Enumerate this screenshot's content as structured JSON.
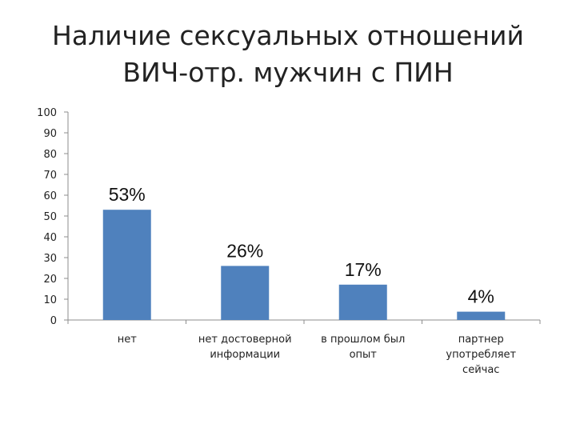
{
  "chart_data": {
    "type": "bar",
    "title_line1": "Наличие сексуальных отношений",
    "title_line2": "ВИЧ-отр. мужчин с ПИН",
    "categories": [
      [
        "нет"
      ],
      [
        "нет достоверной",
        "информации"
      ],
      [
        "в прошлом был",
        "опыт"
      ],
      [
        "партнер",
        "употребляет",
        "сейчас"
      ]
    ],
    "values": [
      53,
      26,
      17,
      4
    ],
    "data_labels": [
      "53%",
      "26%",
      "17%",
      "4%"
    ],
    "yticks": [
      "0",
      "10",
      "20",
      "30",
      "40",
      "50",
      "60",
      "70",
      "80",
      "90",
      "100"
    ],
    "ylim": [
      0,
      100
    ],
    "bar_color": "#4f81bd",
    "grid": false,
    "legend": "none"
  }
}
